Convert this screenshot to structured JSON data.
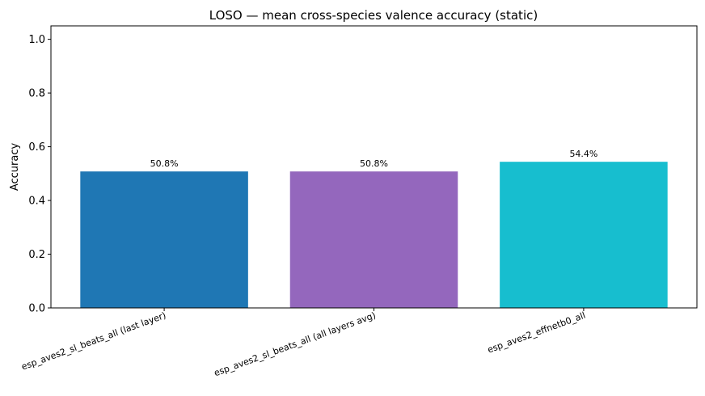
{
  "chart_data": {
    "type": "bar",
    "title": "LOSO — mean cross-species valence accuracy (static)",
    "xlabel": "",
    "ylabel": "Accuracy",
    "ylim": [
      0,
      1.05
    ],
    "yticks": [
      0.0,
      0.2,
      0.4,
      0.6,
      0.8,
      1.0
    ],
    "ytick_labels": [
      "0.0",
      "0.2",
      "0.4",
      "0.6",
      "0.8",
      "1.0"
    ],
    "grid": false,
    "categories": [
      "esp_aves2_sl_beats_all (last layer)",
      "esp_aves2_sl_beats_all (all layers avg)",
      "esp_aves2_effnetb0_all"
    ],
    "values": [
      0.508,
      0.508,
      0.544
    ],
    "data_labels": [
      "50.8%",
      "50.8%",
      "54.4%"
    ],
    "colors": [
      "#1f77b4",
      "#9467bd",
      "#17becf"
    ]
  }
}
